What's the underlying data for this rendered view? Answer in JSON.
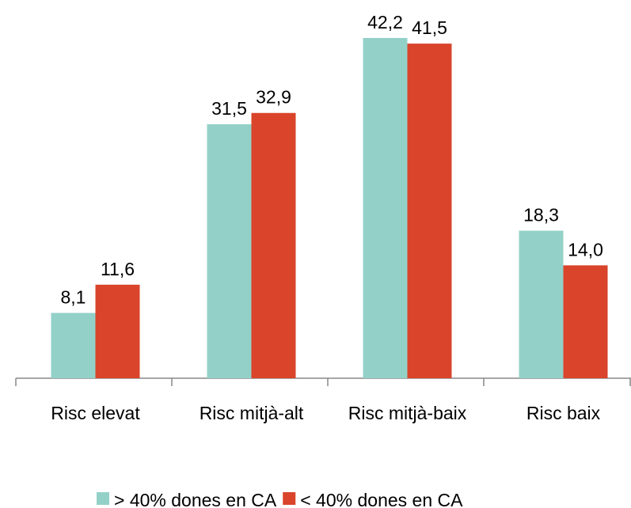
{
  "chart_data": {
    "type": "bar",
    "categories": [
      "Risc elevat",
      "Risc mitjà-alt",
      "Risc mitjà-baix",
      "Risc baix"
    ],
    "series": [
      {
        "name": "> 40% dones en CA",
        "color": "#93d1c8",
        "values": [
          8.1,
          31.5,
          42.2,
          18.3
        ],
        "value_labels": [
          "8,1",
          "31,5",
          "42,2",
          "18,3"
        ]
      },
      {
        "name": "< 40% dones en CA",
        "color": "#d9442a",
        "values": [
          11.6,
          32.9,
          41.5,
          14.0
        ],
        "value_labels": [
          "11,6",
          "32,9",
          "41,5",
          "14,0"
        ]
      }
    ],
    "legend": "bottom"
  }
}
